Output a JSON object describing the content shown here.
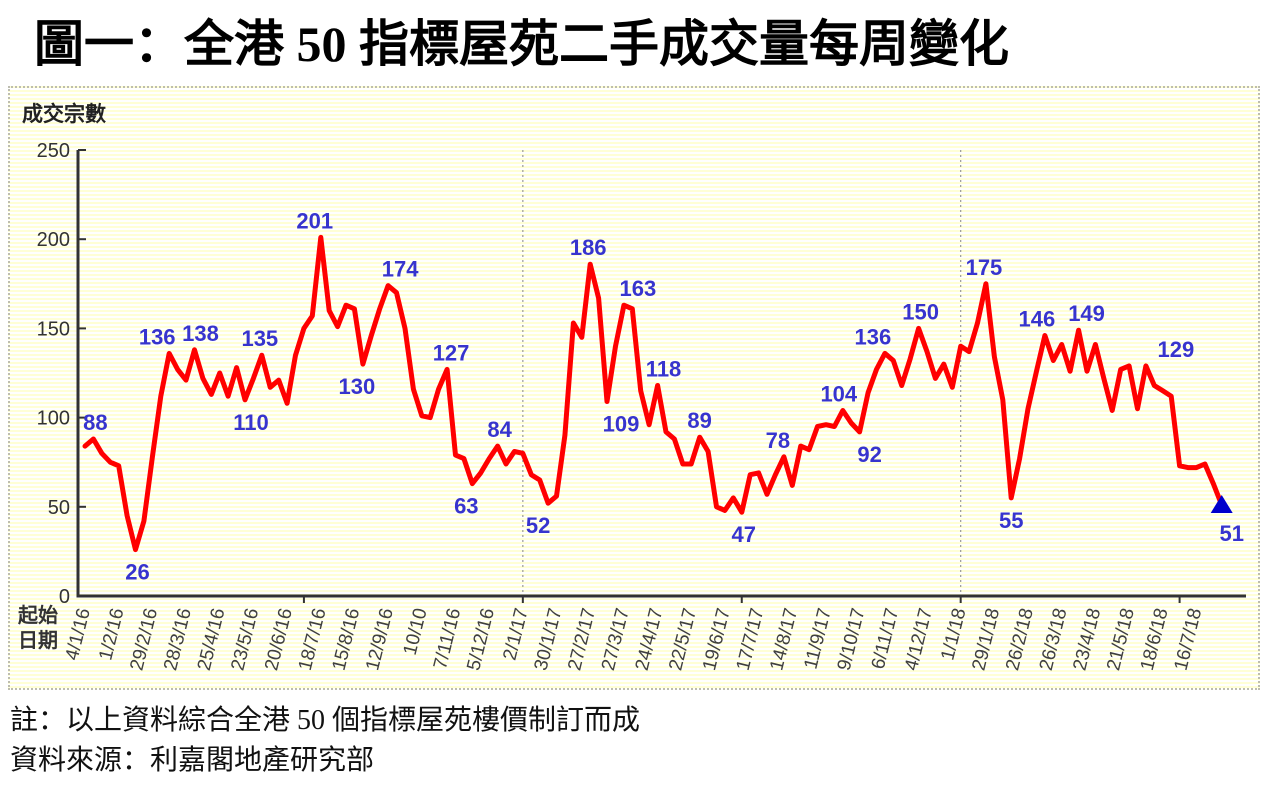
{
  "page": {
    "title": "圖一：全港 50 指標屋苑二手成交量每周變化",
    "note": "註：以上資料綜合全港 50 個指標屋苑樓價制訂而成",
    "source": "資料來源：利嘉閣地產研究部"
  },
  "chart_data": {
    "type": "line",
    "y_axis_title": "成交宗數",
    "x_axis_title_lines": [
      "起始",
      "日期"
    ],
    "ylim": [
      0,
      250
    ],
    "yticks": [
      0,
      50,
      100,
      150,
      200,
      250
    ],
    "grid": "none",
    "legend": "none",
    "x_frequency": "weekly",
    "x_start_date": "4/1/16",
    "x_tick_every": 4,
    "x_tick_labels": [
      "4/1/16",
      "1/2/16",
      "29/2/16",
      "28/3/16",
      "25/4/16",
      "23/5/16",
      "20/6/16",
      "18/7/16",
      "15/8/16",
      "12/9/16",
      "10/10",
      "7/11/16",
      "5/12/16",
      "2/1/17",
      "30/1/17",
      "27/2/17",
      "27/3/17",
      "24/4/17",
      "22/5/17",
      "19/6/17",
      "17/7/17",
      "14/8/17",
      "11/9/17",
      "9/10/17",
      "6/11/17",
      "4/12/17",
      "1/1/18",
      "29/1/18",
      "26/2/18",
      "26/3/18",
      "23/4/18",
      "21/5/18",
      "18/6/18",
      "16/7/18"
    ],
    "values": [
      84,
      88,
      80,
      75,
      73,
      45,
      26,
      42,
      78,
      112,
      136,
      127,
      121,
      138,
      122,
      113,
      125,
      112,
      128,
      110,
      122,
      135,
      117,
      121,
      108,
      135,
      150,
      157,
      201,
      160,
      151,
      163,
      161,
      130,
      146,
      161,
      174,
      170,
      150,
      116,
      101,
      100,
      116,
      127,
      79,
      77,
      63,
      69,
      77,
      84,
      74,
      81,
      80,
      68,
      65,
      52,
      56,
      90,
      153,
      145,
      186,
      167,
      109,
      140,
      163,
      161,
      115,
      96,
      118,
      92,
      88,
      74,
      74,
      89,
      81,
      50,
      48,
      55,
      47,
      68,
      69,
      57,
      68,
      78,
      62,
      84,
      82,
      95,
      96,
      95,
      104,
      97,
      92,
      114,
      127,
      136,
      132,
      118,
      133,
      150,
      137,
      122,
      130,
      117,
      140,
      137,
      153,
      175,
      134,
      110,
      55,
      77,
      105,
      126,
      146,
      132,
      141,
      126,
      149,
      126,
      141,
      122,
      104,
      127,
      129,
      105,
      129,
      118,
      115,
      112,
      73,
      72,
      72,
      74,
      63,
      51
    ],
    "annotations": [
      {
        "i": 1,
        "t": "88",
        "p": "a",
        "dx": 2
      },
      {
        "i": 6,
        "t": "26",
        "p": "b",
        "dx": 2
      },
      {
        "i": 10,
        "t": "136",
        "p": "a",
        "dx": -12
      },
      {
        "i": 13,
        "t": "138",
        "p": "a",
        "dx": 6
      },
      {
        "i": 19,
        "t": "110",
        "p": "b",
        "dx": 6
      },
      {
        "i": 21,
        "t": "135",
        "p": "a",
        "dx": -2
      },
      {
        "i": 28,
        "t": "201",
        "p": "a",
        "dx": -6
      },
      {
        "i": 33,
        "t": "130",
        "p": "b",
        "dx": -6
      },
      {
        "i": 36,
        "t": "174",
        "p": "a",
        "dx": 12
      },
      {
        "i": 43,
        "t": "127",
        "p": "a",
        "dx": 4
      },
      {
        "i": 46,
        "t": "63",
        "p": "b",
        "dx": -6
      },
      {
        "i": 49,
        "t": "84",
        "p": "a",
        "dx": 2
      },
      {
        "i": 55,
        "t": "52",
        "p": "b",
        "dx": -10
      },
      {
        "i": 60,
        "t": "186",
        "p": "a",
        "dx": -2
      },
      {
        "i": 62,
        "t": "109",
        "p": "b",
        "dx": 14
      },
      {
        "i": 64,
        "t": "163",
        "p": "a",
        "dx": 14
      },
      {
        "i": 68,
        "t": "118",
        "p": "a",
        "dx": 6
      },
      {
        "i": 73,
        "t": "89",
        "p": "a",
        "dx": 0
      },
      {
        "i": 78,
        "t": "47",
        "p": "b",
        "dx": 2
      },
      {
        "i": 83,
        "t": "78",
        "p": "a",
        "dx": -6
      },
      {
        "i": 90,
        "t": "104",
        "p": "a",
        "dx": -4
      },
      {
        "i": 92,
        "t": "92",
        "p": "b",
        "dx": 10
      },
      {
        "i": 95,
        "t": "136",
        "p": "a",
        "dx": -12
      },
      {
        "i": 99,
        "t": "150",
        "p": "a",
        "dx": 2
      },
      {
        "i": 107,
        "t": "175",
        "p": "a",
        "dx": -2
      },
      {
        "i": 110,
        "t": "55",
        "p": "b",
        "dx": 0
      },
      {
        "i": 114,
        "t": "146",
        "p": "a",
        "dx": -8
      },
      {
        "i": 118,
        "t": "149",
        "p": "a",
        "dx": 8
      },
      {
        "i": 126,
        "t": "129",
        "p": "a",
        "dx": 30
      },
      {
        "i": 135,
        "t": "51",
        "p": "b",
        "dx": 10,
        "dy": 6
      }
    ],
    "vlines_week_index": [
      52,
      104
    ],
    "x_minor_tick_weeks": [
      26,
      52,
      78,
      104,
      130
    ],
    "end_marker": "triangle",
    "colors": {
      "line": "#FF0000",
      "annotation": "#3734CE",
      "end_marker": "#0000CC",
      "axis": "#333333",
      "vline": "#999999",
      "background_stripe": "#FFFFD6"
    }
  }
}
